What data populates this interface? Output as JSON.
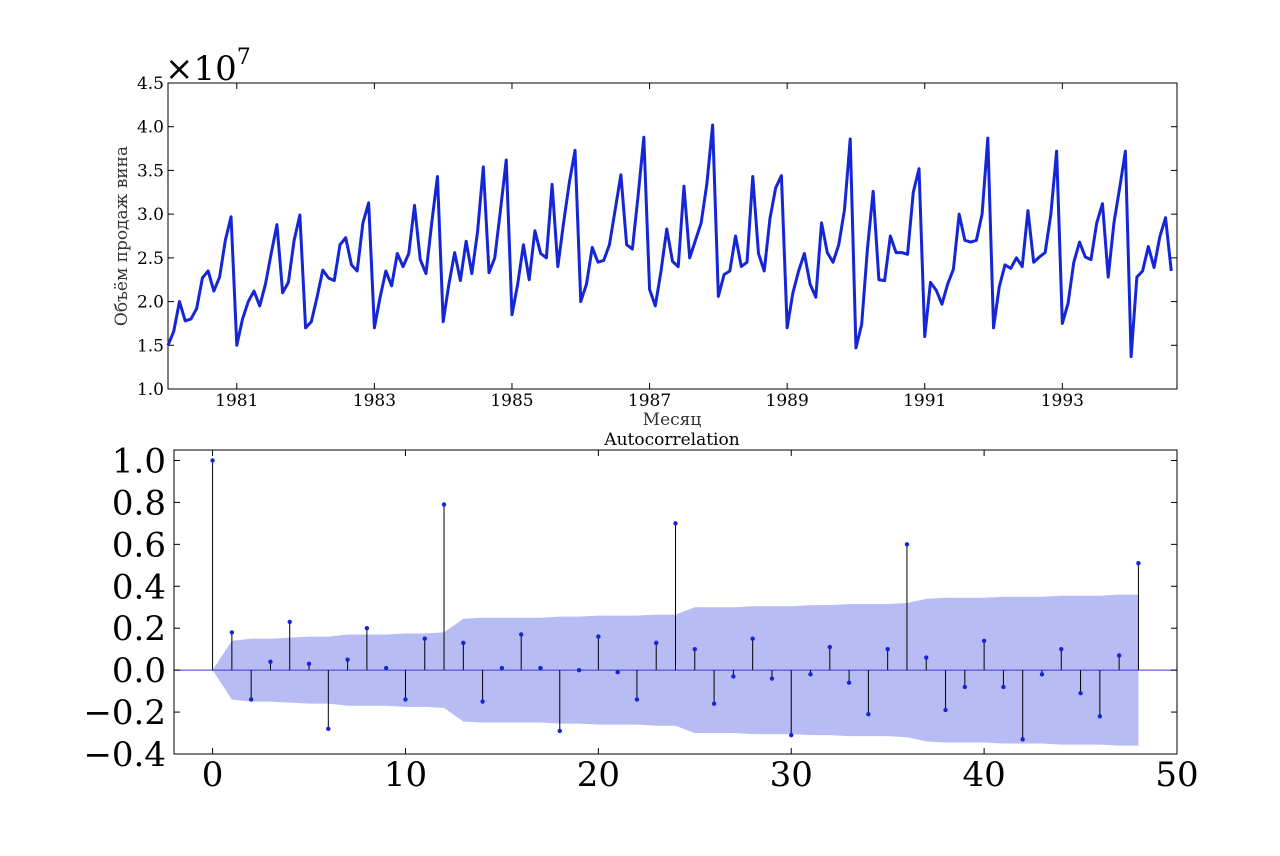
{
  "chart_data": [
    {
      "type": "line",
      "ylabel": "Объём продаж вина",
      "xlabel": "Месяц",
      "y_multiplier_label": "×10",
      "y_multiplier_exponent": "7",
      "ylim": [
        1.0,
        4.5
      ],
      "xlim": [
        1980.0,
        1994.6667
      ],
      "yticks": [
        "1.0",
        "1.5",
        "2.0",
        "2.5",
        "3.0",
        "3.5",
        "4.0",
        "4.5"
      ],
      "xticks": [
        "1981",
        "1983",
        "1985",
        "1987",
        "1989",
        "1991",
        "1993"
      ],
      "series_color": "#1426d6",
      "start": "1980-01",
      "frequency": "monthly",
      "values": [
        1.5,
        1.66,
        2.0,
        1.78,
        1.8,
        1.92,
        2.27,
        2.35,
        2.12,
        2.28,
        2.7,
        2.97,
        1.5,
        1.8,
        2.0,
        2.12,
        1.95,
        2.2,
        2.55,
        2.88,
        2.1,
        2.22,
        2.7,
        2.99,
        1.7,
        1.77,
        2.05,
        2.36,
        2.27,
        2.24,
        2.65,
        2.73,
        2.42,
        2.35,
        2.9,
        3.13,
        1.7,
        2.05,
        2.35,
        2.18,
        2.55,
        2.4,
        2.55,
        3.1,
        2.48,
        2.32,
        2.9,
        3.43,
        1.77,
        2.2,
        2.56,
        2.24,
        2.69,
        2.32,
        2.8,
        3.54,
        2.33,
        2.5,
        3.05,
        3.62,
        1.85,
        2.2,
        2.65,
        2.25,
        2.81,
        2.55,
        2.5,
        3.34,
        2.4,
        2.9,
        3.36,
        3.73,
        2.0,
        2.2,
        2.62,
        2.45,
        2.47,
        2.65,
        3.05,
        3.45,
        2.65,
        2.6,
        3.21,
        3.88,
        2.14,
        1.95,
        2.35,
        2.83,
        2.46,
        2.4,
        3.32,
        2.5,
        2.7,
        2.9,
        3.35,
        4.02,
        2.06,
        2.31,
        2.35,
        2.75,
        2.4,
        2.45,
        3.43,
        2.55,
        2.35,
        2.95,
        3.3,
        3.44,
        1.7,
        2.1,
        2.35,
        2.55,
        2.2,
        2.05,
        2.9,
        2.56,
        2.45,
        2.65,
        3.05,
        3.86,
        1.47,
        1.74,
        2.6,
        3.26,
        2.25,
        2.24,
        2.75,
        2.56,
        2.56,
        2.54,
        3.25,
        3.52,
        1.6,
        2.22,
        2.13,
        1.97,
        2.2,
        2.37,
        3.0,
        2.7,
        2.68,
        2.7,
        3.0,
        3.87,
        1.7,
        2.17,
        2.42,
        2.38,
        2.5,
        2.4,
        3.04,
        2.45,
        2.51,
        2.56,
        3.0,
        3.72,
        1.75,
        1.98,
        2.45,
        2.68,
        2.51,
        2.48,
        2.9,
        3.12,
        2.28,
        2.9,
        3.3,
        3.72,
        1.37,
        2.28,
        2.35,
        2.63,
        2.39,
        2.74,
        2.96,
        2.35
      ]
    },
    {
      "type": "scatter",
      "title": "Autocorrelation",
      "xlim": [
        -2,
        50
      ],
      "ylim": [
        -0.4,
        1.05
      ],
      "xticks": [
        "0",
        "10",
        "20",
        "30",
        "40",
        "50"
      ],
      "yticks": [
        "−0.4",
        "−0.2",
        "0.0",
        "0.2",
        "0.4",
        "0.6",
        "0.8",
        "1.0"
      ],
      "marker_color": "#1426d6",
      "band_color": "#b8bcf4",
      "lags": [
        0,
        1,
        2,
        3,
        4,
        5,
        6,
        7,
        8,
        9,
        10,
        11,
        12,
        13,
        14,
        15,
        16,
        17,
        18,
        19,
        20,
        21,
        22,
        23,
        24,
        25,
        26,
        27,
        28,
        29,
        30,
        31,
        32,
        33,
        34,
        35,
        36,
        37,
        38,
        39,
        40,
        41,
        42,
        43,
        44,
        45,
        46,
        47,
        48
      ],
      "acf": [
        1.0,
        0.18,
        -0.14,
        0.04,
        0.23,
        0.03,
        -0.28,
        0.05,
        0.2,
        0.01,
        -0.14,
        0.15,
        0.79,
        0.13,
        -0.15,
        0.01,
        0.17,
        0.01,
        -0.29,
        0.0,
        0.16,
        -0.01,
        -0.14,
        0.13,
        0.7,
        0.1,
        -0.16,
        -0.03,
        0.15,
        -0.04,
        -0.31,
        -0.02,
        0.11,
        -0.06,
        -0.21,
        0.1,
        0.6,
        0.06,
        -0.19,
        -0.08,
        0.14,
        -0.08,
        -0.33,
        -0.02,
        0.1,
        -0.11,
        -0.22,
        0.07,
        0.51
      ],
      "confint": [
        0.0,
        0.14,
        0.15,
        0.15,
        0.155,
        0.16,
        0.16,
        0.17,
        0.17,
        0.17,
        0.175,
        0.175,
        0.18,
        0.245,
        0.25,
        0.25,
        0.25,
        0.25,
        0.255,
        0.255,
        0.26,
        0.26,
        0.26,
        0.265,
        0.265,
        0.3,
        0.3,
        0.3,
        0.305,
        0.305,
        0.305,
        0.31,
        0.31,
        0.315,
        0.315,
        0.315,
        0.32,
        0.34,
        0.345,
        0.345,
        0.345,
        0.35,
        0.35,
        0.35,
        0.355,
        0.355,
        0.355,
        0.36,
        0.36
      ]
    }
  ]
}
